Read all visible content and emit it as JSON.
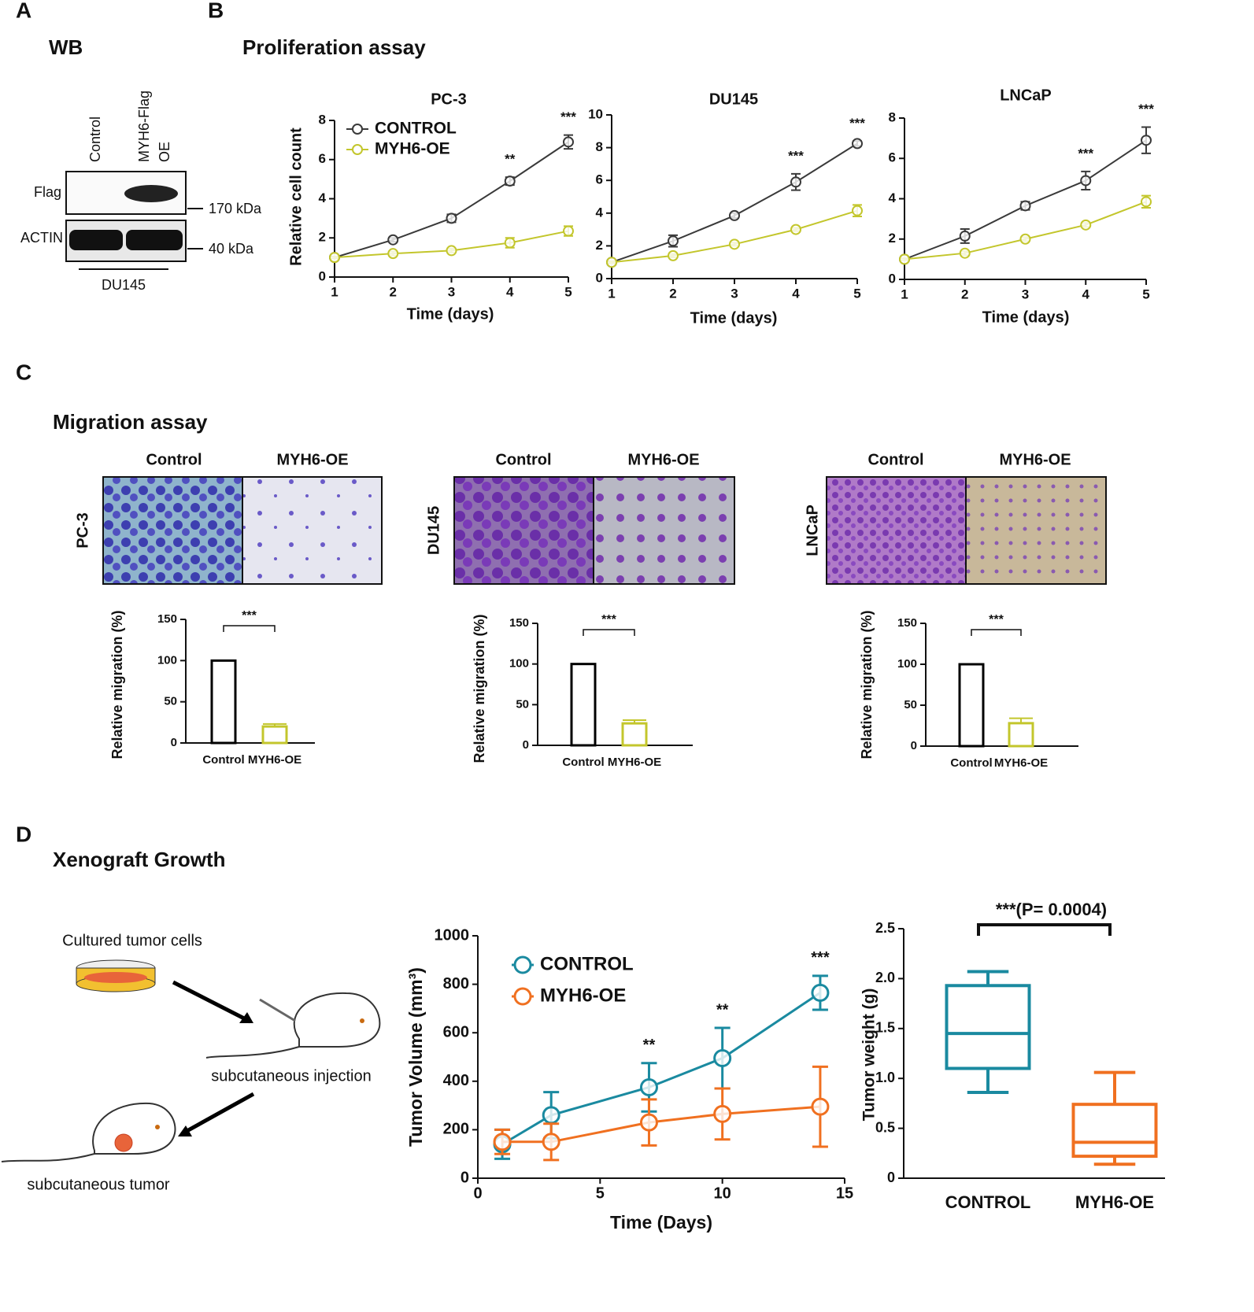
{
  "figure": {
    "panels": [
      "A",
      "B",
      "C",
      "D"
    ],
    "wb": {
      "title": "WB",
      "lanes": [
        "Control",
        "MYH6-Flag",
        "OE"
      ],
      "rows": [
        "Flag",
        "ACTIN"
      ],
      "sizes": [
        "170 kDa",
        "40 kDa"
      ],
      "cell_line": "DU145"
    },
    "proliferation": {
      "title": "Proliferation assay"
    },
    "migration": {
      "title": "Migration assay",
      "columns": [
        "Control",
        "MYH6-OE"
      ],
      "cell_lines": [
        "PC-3",
        "DU145",
        "LNCaP"
      ]
    },
    "xenograft": {
      "title": "Xenograft Growth",
      "steps": [
        "Cultured tumor cells",
        "subcutaneous injection",
        "subcutaneous tumor"
      ]
    }
  },
  "chart_data": [
    {
      "type": "line",
      "title": "PC-3",
      "x_label": "Time (days)",
      "y_label": "Relative cell count",
      "x": [
        1,
        2,
        3,
        4,
        5
      ],
      "xlim": [
        1,
        5
      ],
      "xticks": [
        1,
        2,
        3,
        4,
        5
      ],
      "ylim": [
        0,
        8
      ],
      "yticks": [
        0,
        2,
        4,
        6,
        8
      ],
      "series": [
        {
          "name": "CONTROL",
          "color": "#3a3a3a",
          "values": [
            1,
            1.9,
            3.0,
            4.9,
            6.9
          ],
          "errors": [
            0.05,
            0.1,
            0.2,
            0.2,
            0.35
          ]
        },
        {
          "name": "MYH6-OE",
          "color": "#c3c62c",
          "values": [
            1,
            1.2,
            1.35,
            1.75,
            2.35
          ],
          "errors": [
            0.05,
            0.1,
            0.1,
            0.25,
            0.25
          ]
        }
      ],
      "annotations": [
        {
          "text": "**",
          "x": 4
        },
        {
          "text": "***",
          "x": 5
        }
      ],
      "legend": "upper left"
    },
    {
      "type": "line",
      "title": "DU145",
      "x_label": "Time (days)",
      "x": [
        1,
        2,
        3,
        4,
        5
      ],
      "xlim": [
        1,
        5
      ],
      "xticks": [
        1,
        2,
        3,
        4,
        5
      ],
      "ylim": [
        0,
        10
      ],
      "yticks": [
        0,
        2,
        4,
        6,
        8,
        10
      ],
      "series": [
        {
          "name": "CONTROL",
          "color": "#3a3a3a",
          "values": [
            1,
            2.3,
            3.85,
            5.9,
            8.25
          ],
          "errors": [
            0.1,
            0.35,
            0.15,
            0.5,
            0.15
          ]
        },
        {
          "name": "MYH6-OE",
          "color": "#c3c62c",
          "values": [
            1,
            1.4,
            2.1,
            3.0,
            4.15
          ],
          "errors": [
            0.05,
            0.1,
            0.1,
            0.1,
            0.35
          ]
        }
      ],
      "annotations": [
        {
          "text": "***",
          "x": 4
        },
        {
          "text": "***",
          "x": 5
        }
      ]
    },
    {
      "type": "line",
      "title": "LNCaP",
      "x_label": "Time (days)",
      "x": [
        1,
        2,
        3,
        4,
        5
      ],
      "xlim": [
        1,
        5
      ],
      "xticks": [
        1,
        2,
        3,
        4,
        5
      ],
      "ylim": [
        0,
        8
      ],
      "yticks": [
        0,
        2,
        4,
        6,
        8
      ],
      "series": [
        {
          "name": "CONTROL",
          "color": "#3a3a3a",
          "values": [
            1,
            2.15,
            3.65,
            4.9,
            6.9
          ],
          "errors": [
            0.05,
            0.35,
            0.2,
            0.45,
            0.65
          ]
        },
        {
          "name": "MYH6-OE",
          "color": "#c3c62c",
          "values": [
            1,
            1.3,
            2.0,
            2.7,
            3.85
          ],
          "errors": [
            0.05,
            0.1,
            0.1,
            0.1,
            0.3
          ]
        }
      ],
      "annotations": [
        {
          "text": "***",
          "x": 4
        },
        {
          "text": "***",
          "x": 5
        }
      ]
    },
    {
      "type": "bar",
      "y_label": "Relative migration (%)",
      "categories": [
        "Control",
        "MYH6-OE"
      ],
      "values": [
        100,
        20
      ],
      "errors": [
        0,
        3
      ],
      "colors": [
        "#000000",
        "#c3c62c"
      ],
      "ylim": [
        0,
        150
      ],
      "yticks": [
        0,
        50,
        100,
        150
      ],
      "annotations": [
        {
          "text": "***"
        }
      ]
    },
    {
      "type": "bar",
      "y_label": "Relative migration (%)",
      "categories": [
        "Control",
        "MYH6-OE"
      ],
      "values": [
        100,
        27
      ],
      "errors": [
        0,
        4
      ],
      "colors": [
        "#000000",
        "#c3c62c"
      ],
      "ylim": [
        0,
        150
      ],
      "yticks": [
        0,
        50,
        100,
        150
      ],
      "annotations": [
        {
          "text": "***"
        }
      ]
    },
    {
      "type": "bar",
      "y_label": "Relative migration (%)",
      "categories": [
        "Control",
        "MYH6-OE"
      ],
      "values": [
        100,
        28
      ],
      "errors": [
        0,
        6
      ],
      "colors": [
        "#000000",
        "#c3c62c"
      ],
      "ylim": [
        0,
        150
      ],
      "yticks": [
        0,
        50,
        100,
        150
      ],
      "annotations": [
        {
          "text": "***"
        }
      ]
    },
    {
      "type": "line",
      "x_label": "Time (Days)",
      "y_label": "Tumor Volume (mm³)",
      "x": [
        1,
        3,
        7,
        10,
        14
      ],
      "xlim": [
        0,
        15
      ],
      "xticks": [
        0,
        5,
        10,
        15
      ],
      "ylim": [
        0,
        1000
      ],
      "yticks": [
        0,
        200,
        400,
        600,
        800,
        1000
      ],
      "series": [
        {
          "name": "CONTROL",
          "color": "#1a8aa0",
          "values": [
            140,
            260,
            375,
            495,
            765
          ],
          "errors": [
            60,
            95,
            100,
            125,
            70
          ]
        },
        {
          "name": "MYH6-OE",
          "color": "#f07020",
          "values": [
            150,
            150,
            230,
            265,
            295
          ],
          "errors": [
            50,
            75,
            95,
            105,
            165
          ]
        }
      ],
      "annotations": [
        {
          "text": "**",
          "x": 7
        },
        {
          "text": "**",
          "x": 10
        },
        {
          "text": "***",
          "x": 14
        }
      ],
      "legend": "upper left"
    },
    {
      "type": "box",
      "y_label": "Tumor weight (g)",
      "categories": [
        "CONTROL",
        "MYH6-OE"
      ],
      "colors": [
        "#1a8aa0",
        "#f07020"
      ],
      "ylim": [
        0,
        2.5
      ],
      "yticks": [
        0,
        0.5,
        {
          "value": 1,
          "label": "1.0"
        },
        1.5,
        {
          "value": 2,
          "label": "2.0"
        },
        2.5
      ],
      "boxes": [
        {
          "min": 0.86,
          "q1": 1.1,
          "median": 1.45,
          "q3": 1.93,
          "max": 2.07
        },
        {
          "min": 0.14,
          "q1": 0.22,
          "median": 0.36,
          "q3": 0.74,
          "max": 1.06
        }
      ],
      "annotations": [
        {
          "text": "***(P= 0.0004)"
        }
      ]
    }
  ]
}
